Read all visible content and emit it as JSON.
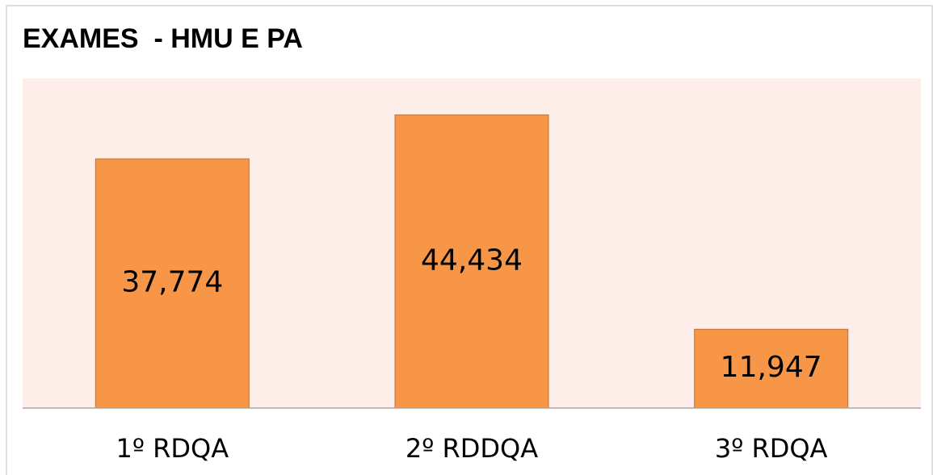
{
  "chart_data": {
    "type": "bar",
    "title": "EXAMES  - HMU E PA",
    "categories": [
      "1º RDQA",
      "2º RDDQA",
      "3º RDQA"
    ],
    "values": [
      37774,
      44434,
      11947
    ],
    "value_labels": [
      "37,774",
      "44,434",
      "11,947"
    ],
    "color": "#f79646",
    "ylim": [
      0,
      50000
    ]
  }
}
